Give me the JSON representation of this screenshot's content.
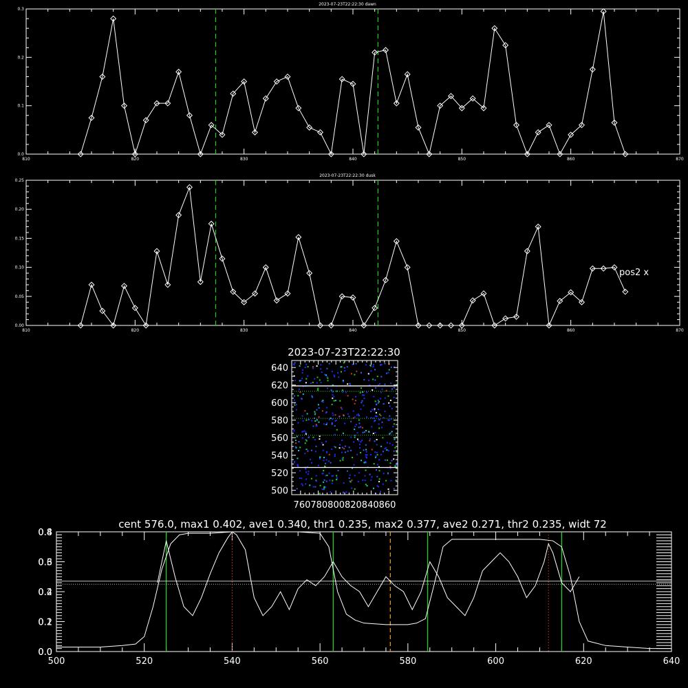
{
  "chart_data": [
    {
      "id": "dawn",
      "type": "line",
      "title": "2023-07-23T22:22:30 dawn",
      "xlim": [
        810,
        870
      ],
      "ylim": [
        0,
        0.3
      ],
      "xticks": [
        810,
        820,
        830,
        840,
        850,
        860,
        870
      ],
      "xtick_labels": [
        "810",
        "820",
        "830",
        "840",
        "850",
        "860",
        "870"
      ],
      "yticks": [
        0,
        0.1,
        0.2,
        0.3
      ],
      "ytick_labels": [
        "0.0",
        "0.1",
        "0.2",
        "0.3"
      ],
      "markers": "diamond",
      "vlines": [
        827.4,
        842.3
      ],
      "x": [
        815,
        816,
        817,
        818,
        819,
        820,
        821,
        822,
        823,
        824,
        825,
        826,
        827,
        828,
        829,
        830,
        831,
        832,
        833,
        834,
        835,
        836,
        837,
        838,
        839,
        840,
        841,
        842,
        843,
        844,
        845,
        846,
        847,
        848,
        849,
        850,
        851,
        852,
        853,
        854,
        855,
        856,
        857,
        858,
        859,
        860,
        861,
        862,
        863,
        864,
        865
      ],
      "y": [
        0.0,
        0.075,
        0.16,
        0.28,
        0.1,
        0.0,
        0.07,
        0.105,
        0.105,
        0.17,
        0.08,
        0.0,
        0.06,
        0.04,
        0.125,
        0.15,
        0.045,
        0.115,
        0.15,
        0.16,
        0.095,
        0.055,
        0.045,
        0.0,
        0.155,
        0.145,
        0.0,
        0.21,
        0.215,
        0.105,
        0.165,
        0.055,
        0.0,
        0.1,
        0.12,
        0.095,
        0.115,
        0.095,
        0.26,
        0.225,
        0.06,
        0.0,
        0.045,
        0.06,
        0.0,
        0.04,
        0.06,
        0.175,
        0.295,
        0.065,
        0.0
      ]
    },
    {
      "id": "dusk",
      "type": "line",
      "title": "2023-07-23T22:22:30 dusk",
      "xlim": [
        810,
        870
      ],
      "ylim": [
        0,
        0.25
      ],
      "xticks": [
        810,
        820,
        830,
        840,
        850,
        860,
        870
      ],
      "xtick_labels": [
        "810",
        "820",
        "830",
        "840",
        "850",
        "860",
        "870"
      ],
      "yticks": [
        0,
        0.05,
        0.1,
        0.15,
        0.2,
        0.25
      ],
      "ytick_labels": [
        "0.00",
        "0.05",
        "0.10",
        "0.15",
        "0.20",
        "0.25"
      ],
      "markers": "diamond",
      "vlines": [
        827.4,
        842.3
      ],
      "annotation": "pos2 x",
      "x": [
        815,
        816,
        817,
        818,
        819,
        820,
        821,
        822,
        823,
        824,
        825,
        826,
        827,
        828,
        829,
        830,
        831,
        832,
        833,
        834,
        835,
        836,
        837,
        838,
        839,
        840,
        841,
        842,
        843,
        844,
        845,
        846,
        847,
        848,
        849,
        850,
        851,
        852,
        853,
        854,
        855,
        856,
        857,
        858,
        859,
        860,
        861,
        862,
        863,
        864,
        865
      ],
      "y": [
        0.0,
        0.07,
        0.025,
        0.0,
        0.068,
        0.03,
        0.0,
        0.128,
        0.07,
        0.19,
        0.238,
        0.075,
        0.175,
        0.115,
        0.058,
        0.04,
        0.055,
        0.1,
        0.043,
        0.055,
        0.152,
        0.09,
        0.0,
        0.0,
        0.05,
        0.048,
        0.0,
        0.03,
        0.078,
        0.145,
        0.1,
        0.0,
        0.0,
        0.0,
        0.0,
        0.0,
        0.043,
        0.055,
        0.0,
        0.012,
        0.015,
        0.128,
        0.17,
        0.0,
        0.042,
        0.057,
        0.04,
        0.098,
        0.098,
        0.1,
        0.058
      ]
    },
    {
      "id": "image",
      "type": "heatmap",
      "title": "2023-07-23T22:22:30",
      "xlim": [
        750,
        870
      ],
      "ylim": [
        495,
        648
      ],
      "xticks": [
        760,
        780,
        800,
        820,
        840,
        860
      ],
      "xtick_labels": [
        "760",
        "780",
        "800",
        "820",
        "840",
        "860"
      ],
      "yticks": [
        500,
        520,
        540,
        560,
        580,
        600,
        620,
        640
      ],
      "ytick_labels": [
        "500",
        "520",
        "540",
        "560",
        "580",
        "600",
        "620",
        "640"
      ],
      "hlines_solid": [
        619,
        526
      ],
      "hlines_dotted": [
        613,
        582,
        563
      ],
      "point_colors": [
        "#1a2cff",
        "#2f5bff",
        "#1fd11f",
        "#22c8c8",
        "#d23a2a",
        "#ffffff"
      ]
    },
    {
      "id": "profile",
      "type": "line",
      "title": "cent 576.0, max1 0.402, ave1 0.340, thr1 0.235, max2 0.377, ave2 0.271, thr2 0.235, widt 72",
      "xlim": [
        500,
        640
      ],
      "ylim": [
        0,
        0.8
      ],
      "xticks": [
        500,
        520,
        540,
        560,
        580,
        600,
        620,
        640
      ],
      "xtick_labels": [
        "500",
        "520",
        "540",
        "560",
        "580",
        "600",
        "620",
        "640"
      ],
      "yticks": [
        0,
        0.2,
        0.4,
        0.6,
        0.8
      ],
      "ytick_labels": [
        "0.0",
        "0.2",
        "0.4",
        "0.6",
        "0.8"
      ],
      "right_yticks": [
        0,
        0.1,
        0.2,
        0.3,
        0.4
      ],
      "right_ytick_labels": [
        "0.0",
        "0.1",
        "0.2",
        "0.3",
        "0.4"
      ],
      "green_lines": [
        525,
        563,
        584.5,
        615
      ],
      "red_lines": [
        540,
        612
      ],
      "orange_line": 576,
      "hline_solid": 0.47,
      "hline_dotted": 0.45,
      "series": [
        {
          "x": [
            500,
            505,
            510,
            515,
            518,
            520,
            522,
            524,
            526,
            528,
            530,
            535,
            540,
            545,
            550,
            555,
            560,
            562,
            564,
            566,
            568,
            570,
            575,
            580,
            582,
            584,
            586,
            588,
            590,
            595,
            600,
            605,
            610,
            613,
            615,
            617,
            619,
            621,
            625,
            630,
            635,
            640
          ],
          "y": [
            0.03,
            0.03,
            0.03,
            0.04,
            0.05,
            0.1,
            0.3,
            0.55,
            0.72,
            0.78,
            0.79,
            0.79,
            0.8,
            0.8,
            0.8,
            0.8,
            0.79,
            0.7,
            0.4,
            0.25,
            0.21,
            0.19,
            0.18,
            0.18,
            0.19,
            0.22,
            0.45,
            0.7,
            0.75,
            0.75,
            0.75,
            0.75,
            0.75,
            0.74,
            0.7,
            0.5,
            0.2,
            0.07,
            0.04,
            0.03,
            0.02,
            0.02
          ]
        },
        {
          "x": [
            523,
            525,
            527,
            529,
            531,
            533,
            535,
            537,
            539,
            540,
            541,
            543,
            545,
            547,
            549,
            551,
            553,
            555,
            557,
            559,
            561,
            563,
            565,
            567,
            569,
            571,
            573,
            575,
            577,
            579,
            581,
            583,
            585,
            587,
            589,
            591,
            593,
            595,
            597,
            599,
            601,
            603,
            605,
            607,
            609,
            611,
            612,
            613,
            615,
            617,
            619
          ],
          "y": [
            0.23,
            0.37,
            0.25,
            0.15,
            0.12,
            0.18,
            0.26,
            0.33,
            0.38,
            0.4,
            0.39,
            0.34,
            0.18,
            0.12,
            0.15,
            0.2,
            0.14,
            0.21,
            0.24,
            0.22,
            0.25,
            0.3,
            0.25,
            0.22,
            0.2,
            0.15,
            0.2,
            0.25,
            0.22,
            0.2,
            0.14,
            0.2,
            0.3,
            0.25,
            0.18,
            0.15,
            0.12,
            0.18,
            0.27,
            0.3,
            0.33,
            0.3,
            0.25,
            0.18,
            0.22,
            0.3,
            0.36,
            0.33,
            0.23,
            0.2,
            0.25
          ]
        }
      ]
    }
  ]
}
